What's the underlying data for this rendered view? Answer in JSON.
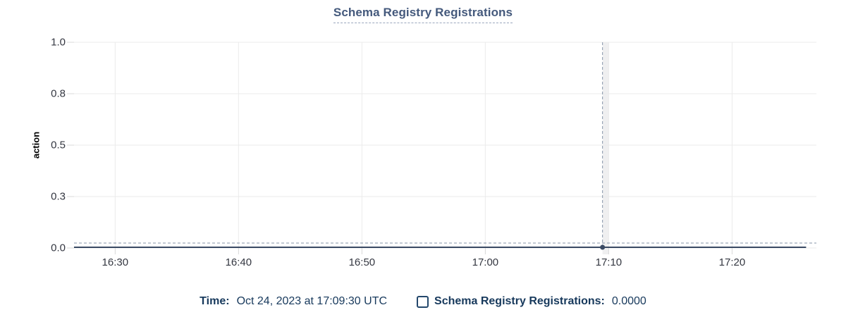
{
  "header": {
    "title": "Schema Registry Registrations"
  },
  "legend": {
    "time_label": "Time:",
    "time_value": "Oct 24, 2023 at 17:09:30 UTC",
    "series_checkbox_state": "unchecked",
    "series_label": "Schema Registry Registrations:",
    "series_value": "0.0000"
  },
  "chart_data": {
    "type": "line",
    "title": "Schema Registry Registrations",
    "xlabel": "",
    "ylabel": "action",
    "ylim": [
      0,
      1
    ],
    "grid": true,
    "legend_position": "bottom",
    "y_ticks": [
      {
        "value": 1.0,
        "label": "1.0"
      },
      {
        "value": 0.75,
        "label": "0.8"
      },
      {
        "value": 0.5,
        "label": "0.5"
      },
      {
        "value": 0.25,
        "label": "0.3"
      },
      {
        "value": 0.0,
        "label": "0.0"
      }
    ],
    "x_ticks": [
      "16:30",
      "16:40",
      "16:50",
      "17:00",
      "17:10",
      "17:20"
    ],
    "x_domain": [
      "16:26:40",
      "17:26:50"
    ],
    "series": [
      {
        "name": "Schema Registry Registrations",
        "type": "line",
        "constant_value": 0,
        "x_start": "16:26:40",
        "x_end": "17:26:00"
      }
    ],
    "cursor": {
      "time": "17:09:30",
      "value": 0,
      "value_label": "0.0000",
      "bucket_seconds": 30
    },
    "colors": {
      "line": "#3A4A64",
      "dot": "#3A4A64",
      "title": "#44597C",
      "grid": "#EBEBEB",
      "tick": "#D8D8D8",
      "crosshair": "#8594A8",
      "band": "#EFEFF0",
      "legend_text": "#17395C",
      "axis_label": "#343741"
    }
  }
}
